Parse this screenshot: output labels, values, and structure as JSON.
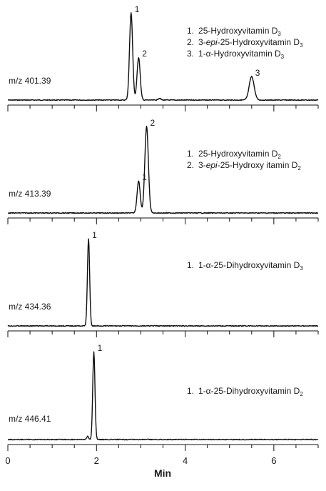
{
  "chart_data": {
    "type": "line",
    "xlabel": "Min",
    "xlim": [
      0,
      7
    ],
    "x_ticks": [
      0,
      2,
      4,
      6
    ],
    "panels": [
      {
        "mz_label": "m/z 401.39",
        "legend": [
          {
            "num": "1.",
            "pre": "25-Hydroxyvitamin D",
            "sub": "3",
            "italic": "",
            "post": ""
          },
          {
            "num": "2.",
            "pre": "3-",
            "italic": "epi",
            "post": "-25-Hydroxyvitamin D",
            "sub": "3"
          },
          {
            "num": "3.",
            "pre": "1-α-Hydroxyvitamin D",
            "sub": "3",
            "italic": "",
            "post": ""
          }
        ],
        "peaks": [
          {
            "label": "1",
            "rt": 2.78,
            "height": 1.0,
            "width": 0.035
          },
          {
            "label": "2",
            "rt": 2.95,
            "height": 0.49,
            "width": 0.035
          },
          {
            "label": "3",
            "rt": 5.5,
            "height": 0.27,
            "width": 0.055
          },
          {
            "label": "",
            "rt": 3.42,
            "height": 0.02,
            "width": 0.03
          }
        ]
      },
      {
        "mz_label": "m/z 413.39",
        "legend": [
          {
            "num": "1.",
            "pre": "25-Hydroxyvitamin D",
            "sub": "2",
            "italic": "",
            "post": ""
          },
          {
            "num": "2.",
            "pre": "3-",
            "italic": "epi",
            "post": "-25-Hydroxy itamin D",
            "sub": "2"
          }
        ],
        "peaks": [
          {
            "label": "1",
            "rt": 2.95,
            "height": 0.37,
            "width": 0.035
          },
          {
            "label": "2",
            "rt": 3.13,
            "height": 1.0,
            "width": 0.04
          }
        ]
      },
      {
        "mz_label": "m/z 434.36",
        "legend": [
          {
            "num": "1.",
            "pre": "1-α-25-Dihydroxyvitamin D",
            "sub": "3",
            "italic": "",
            "post": ""
          }
        ],
        "peaks": [
          {
            "label": "1",
            "rt": 1.82,
            "height": 1.0,
            "width": 0.025
          }
        ]
      },
      {
        "mz_label": "m/z 446.41",
        "legend": [
          {
            "num": "1.",
            "pre": "1-α-25-Dihydroxyvitamin D",
            "sub": "2",
            "italic": "",
            "post": ""
          }
        ],
        "peaks": [
          {
            "label": "1",
            "rt": 1.94,
            "height": 1.0,
            "width": 0.025
          },
          {
            "label": "",
            "rt": 1.8,
            "height": 0.04,
            "width": 0.02
          }
        ]
      }
    ]
  }
}
